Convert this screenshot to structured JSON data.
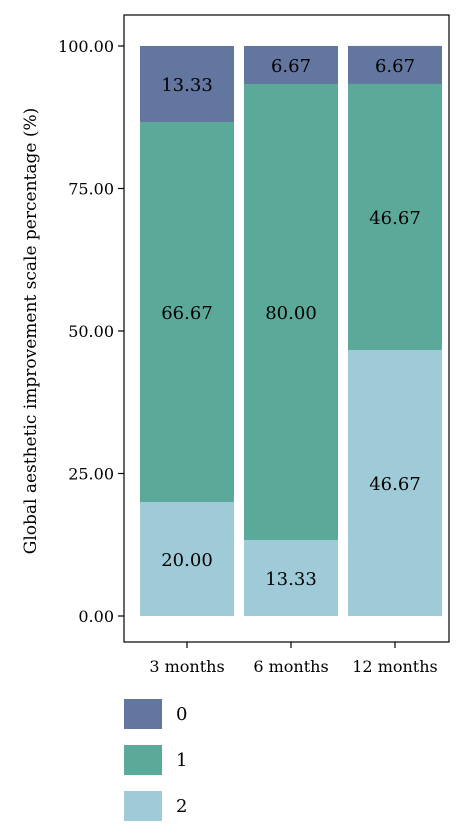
{
  "chart_data": {
    "type": "bar",
    "stacked": true,
    "ylabel": "Global aesthetic improvement scale percentage (%)",
    "xlabel": "",
    "ylim": [
      0,
      100
    ],
    "yticks": [
      "0.00",
      "25.00",
      "50.00",
      "75.00",
      "100.00"
    ],
    "categories": [
      "3 months",
      "6 months",
      "12 months"
    ],
    "series": [
      {
        "name": "2",
        "color": "#9fcbd9",
        "values": [
          20.0,
          13.33,
          46.67
        ],
        "labels": [
          "20.00",
          "13.33",
          "46.67"
        ]
      },
      {
        "name": "1",
        "color": "#5aa999",
        "values": [
          66.67,
          80.0,
          46.67
        ],
        "labels": [
          "66.67",
          "80.00",
          "46.67"
        ]
      },
      {
        "name": "0",
        "color": "#62769f",
        "values": [
          13.33,
          6.67,
          6.67
        ],
        "labels": [
          "13.33",
          "6.67",
          "6.67"
        ]
      }
    ],
    "legend": {
      "placement": "bottom-left",
      "order": [
        "0",
        "1",
        "2"
      ]
    },
    "grid": false
  }
}
